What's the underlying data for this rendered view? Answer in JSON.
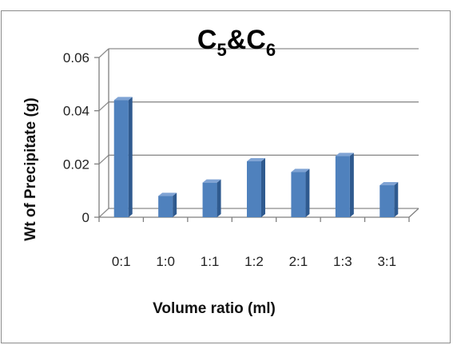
{
  "chart_data": {
    "type": "bar",
    "title": "C5&C6",
    "title_parts": {
      "c1": "C",
      "sub1": "5",
      "amp": "&",
      "c2": "C",
      "sub2": "6"
    },
    "xlabel": "Volume ratio (ml)",
    "ylabel": "Wt of Precipitate (g)",
    "categories": [
      "0:1",
      "1:0",
      "1:1",
      "1:2",
      "2:1",
      "1:3",
      "3:1"
    ],
    "values": [
      0.044,
      0.008,
      0.013,
      0.021,
      0.017,
      0.023,
      0.012
    ],
    "ylim": [
      0,
      0.06
    ],
    "yticks": [
      "0",
      "0.02",
      "0.04",
      "0.06"
    ],
    "ytick_values": [
      0,
      0.02,
      0.04,
      0.06
    ],
    "grid": true,
    "legend": "none",
    "bar_style": "3d",
    "colors": {
      "bar_front": "#4f81bd",
      "bar_side": "#2f5a8f",
      "bar_top": "#7fa3d4",
      "grid": "#8c8c8c",
      "axis": "#7f7f7f"
    }
  }
}
